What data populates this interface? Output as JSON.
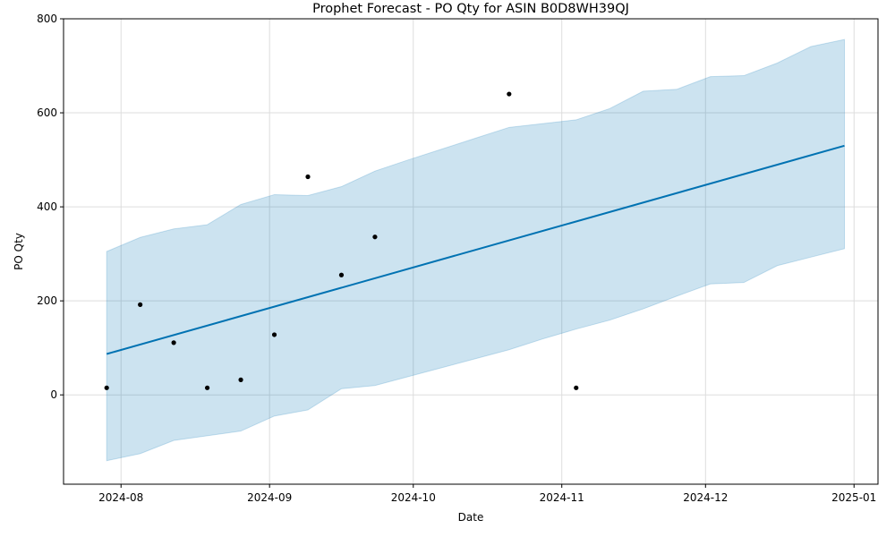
{
  "chart_data": {
    "type": "line",
    "title": "Prophet Forecast - PO Qty for ASIN B0D8WH39QJ",
    "xlabel": "Date",
    "ylabel": "PO Qty",
    "x_range": [
      "2024-07-20",
      "2025-01-06"
    ],
    "ylim": [
      -190,
      800
    ],
    "grid": true,
    "x_ticks": [
      "2024-08-01",
      "2024-09-01",
      "2024-10-01",
      "2024-11-01",
      "2024-12-01",
      "2025-01-01"
    ],
    "x_tick_labels": [
      "2024-08",
      "2024-09",
      "2024-10",
      "2024-11",
      "2024-12",
      "2025-01"
    ],
    "y_ticks": [
      0,
      200,
      400,
      600,
      800
    ],
    "y_tick_labels": [
      "0",
      "200",
      "400",
      "600",
      "800"
    ],
    "colors": {
      "forecast": "#0072B2",
      "interval_fill": "#0072B2",
      "points": "#000000",
      "grid": "#dddddd"
    },
    "series": [
      {
        "type": "scatter",
        "x": [
          "2024-07-29",
          "2024-08-05",
          "2024-08-12",
          "2024-08-19",
          "2024-08-26",
          "2024-09-02",
          "2024-09-09",
          "2024-09-16",
          "2024-09-23",
          "2024-10-21",
          "2024-11-04"
        ],
        "y": [
          15,
          192,
          111,
          15,
          32,
          128,
          464,
          255,
          336,
          640,
          15
        ]
      },
      {
        "type": "line",
        "x": [
          "2024-07-29",
          "2024-12-30"
        ],
        "y": [
          87,
          530
        ]
      },
      {
        "type": "area",
        "x": [
          "2024-07-29",
          "2024-08-05",
          "2024-08-12",
          "2024-08-19",
          "2024-08-26",
          "2024-09-02",
          "2024-09-09",
          "2024-09-16",
          "2024-09-23",
          "2024-09-30",
          "2024-10-07",
          "2024-10-14",
          "2024-10-21",
          "2024-10-28",
          "2024-11-04",
          "2024-11-11",
          "2024-11-18",
          "2024-11-25",
          "2024-12-02",
          "2024-12-09",
          "2024-12-16",
          "2024-12-23",
          "2024-12-30"
        ],
        "upper": [
          305,
          335,
          353,
          362,
          405,
          426,
          424,
          443,
          476,
          500,
          523,
          546,
          569,
          577,
          585,
          609,
          646,
          650,
          677,
          679,
          706,
          741,
          756
        ],
        "lower": [
          -140,
          -125,
          -97,
          -87,
          -77,
          -45,
          -32,
          13,
          20,
          39,
          58,
          77,
          96,
          119,
          140,
          159,
          183,
          210,
          236,
          239,
          275,
          293,
          311
        ]
      }
    ]
  }
}
